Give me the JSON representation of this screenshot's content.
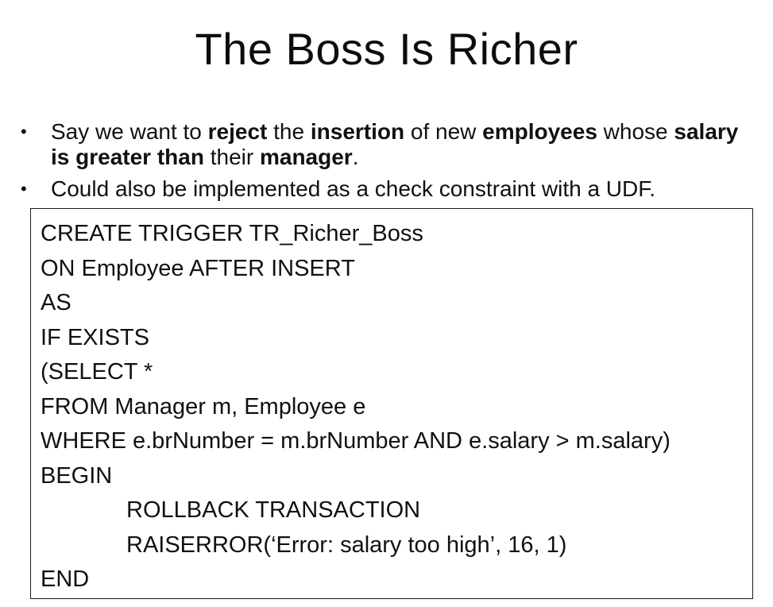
{
  "slide": {
    "title": "The Boss Is Richer",
    "bullets": [
      {
        "segments": [
          {
            "text": "Say we want to ",
            "bold": false
          },
          {
            "text": "reject",
            "bold": true
          },
          {
            "text": " the ",
            "bold": false
          },
          {
            "text": "insertion",
            "bold": true
          },
          {
            "text": " of new ",
            "bold": false
          },
          {
            "text": "employees",
            "bold": true
          },
          {
            "text": " whose ",
            "bold": false
          },
          {
            "text": "salary is greater than",
            "bold": true
          },
          {
            "text": " their ",
            "bold": false
          },
          {
            "text": "manager",
            "bold": true
          },
          {
            "text": ".",
            "bold": false
          }
        ]
      },
      {
        "segments": [
          {
            "text": "Could also be implemented as a check constraint with a UDF.",
            "bold": false
          }
        ]
      }
    ],
    "code": [
      {
        "text": "CREATE TRIGGER TR_Richer_Boss",
        "indent": false
      },
      {
        "text": "ON Employee AFTER INSERT",
        "indent": false
      },
      {
        "text": "AS",
        "indent": false
      },
      {
        "text": "IF EXISTS",
        "indent": false
      },
      {
        "text": "(SELECT *",
        "indent": false
      },
      {
        "text": "FROM Manager m, Employee e",
        "indent": false
      },
      {
        "text": "WHERE e.brNumber = m.brNumber AND e.salary > m.salary)",
        "indent": false
      },
      {
        "text": "BEGIN",
        "indent": false
      },
      {
        "text": "ROLLBACK TRANSACTION",
        "indent": true
      },
      {
        "text": "RAISERROR(‘Error: salary too high’, 16, 1)",
        "indent": true
      },
      {
        "text": "END",
        "indent": false
      }
    ]
  }
}
